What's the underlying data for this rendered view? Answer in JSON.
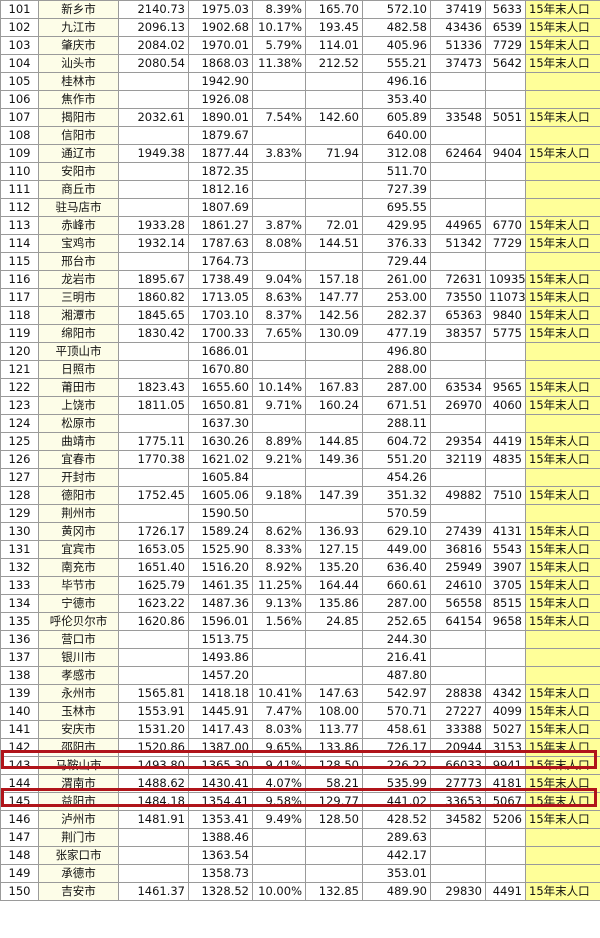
{
  "table": {
    "rows": [
      [
        "101",
        "新乡市",
        "2140.73",
        "1975.03",
        "8.39%",
        "165.70",
        "572.10",
        "37419",
        "5633",
        "15年末人口"
      ],
      [
        "102",
        "九江市",
        "2096.13",
        "1902.68",
        "10.17%",
        "193.45",
        "482.58",
        "43436",
        "6539",
        "15年末人口"
      ],
      [
        "103",
        "肇庆市",
        "2084.02",
        "1970.01",
        "5.79%",
        "114.01",
        "405.96",
        "51336",
        "7729",
        "15年末人口"
      ],
      [
        "104",
        "汕头市",
        "2080.54",
        "1868.03",
        "11.38%",
        "212.52",
        "555.21",
        "37473",
        "5642",
        "15年末人口"
      ],
      [
        "105",
        "桂林市",
        null,
        "1942.90",
        null,
        null,
        "496.16",
        null,
        null,
        null
      ],
      [
        "106",
        "焦作市",
        null,
        "1926.08",
        null,
        null,
        "353.40",
        null,
        null,
        null
      ],
      [
        "107",
        "揭阳市",
        "2032.61",
        "1890.01",
        "7.54%",
        "142.60",
        "605.89",
        "33548",
        "5051",
        "15年末人口"
      ],
      [
        "108",
        "信阳市",
        null,
        "1879.67",
        null,
        null,
        "640.00",
        null,
        null,
        null
      ],
      [
        "109",
        "通辽市",
        "1949.38",
        "1877.44",
        "3.83%",
        "71.94",
        "312.08",
        "62464",
        "9404",
        "15年末人口"
      ],
      [
        "110",
        "安阳市",
        null,
        "1872.35",
        null,
        null,
        "511.70",
        null,
        null,
        null
      ],
      [
        "111",
        "商丘市",
        null,
        "1812.16",
        null,
        null,
        "727.39",
        null,
        null,
        null
      ],
      [
        "112",
        "驻马店市",
        null,
        "1807.69",
        null,
        null,
        "695.55",
        null,
        null,
        null
      ],
      [
        "113",
        "赤峰市",
        "1933.28",
        "1861.27",
        "3.87%",
        "72.01",
        "429.95",
        "44965",
        "6770",
        "15年末人口"
      ],
      [
        "114",
        "宝鸡市",
        "1932.14",
        "1787.63",
        "8.08%",
        "144.51",
        "376.33",
        "51342",
        "7729",
        "15年末人口"
      ],
      [
        "115",
        "邢台市",
        null,
        "1764.73",
        null,
        null,
        "729.44",
        null,
        null,
        null
      ],
      [
        "116",
        "龙岩市",
        "1895.67",
        "1738.49",
        "9.04%",
        "157.18",
        "261.00",
        "72631",
        "10935",
        "15年末人口"
      ],
      [
        "117",
        "三明市",
        "1860.82",
        "1713.05",
        "8.63%",
        "147.77",
        "253.00",
        "73550",
        "11073",
        "15年末人口"
      ],
      [
        "118",
        "湘潭市",
        "1845.65",
        "1703.10",
        "8.37%",
        "142.56",
        "282.37",
        "65363",
        "9840",
        "15年末人口"
      ],
      [
        "119",
        "绵阳市",
        "1830.42",
        "1700.33",
        "7.65%",
        "130.09",
        "477.19",
        "38357",
        "5775",
        "15年末人口"
      ],
      [
        "120",
        "平顶山市",
        null,
        "1686.01",
        null,
        null,
        "496.80",
        null,
        null,
        null
      ],
      [
        "121",
        "日照市",
        null,
        "1670.80",
        null,
        null,
        "288.00",
        null,
        null,
        null
      ],
      [
        "122",
        "莆田市",
        "1823.43",
        "1655.60",
        "10.14%",
        "167.83",
        "287.00",
        "63534",
        "9565",
        "15年末人口"
      ],
      [
        "123",
        "上饶市",
        "1811.05",
        "1650.81",
        "9.71%",
        "160.24",
        "671.51",
        "26970",
        "4060",
        "15年末人口"
      ],
      [
        "124",
        "松原市",
        null,
        "1637.30",
        null,
        null,
        "288.11",
        null,
        null,
        null
      ],
      [
        "125",
        "曲靖市",
        "1775.11",
        "1630.26",
        "8.89%",
        "144.85",
        "604.72",
        "29354",
        "4419",
        "15年末人口"
      ],
      [
        "126",
        "宜春市",
        "1770.38",
        "1621.02",
        "9.21%",
        "149.36",
        "551.20",
        "32119",
        "4835",
        "15年末人口"
      ],
      [
        "127",
        "开封市",
        null,
        "1605.84",
        null,
        null,
        "454.26",
        null,
        null,
        null
      ],
      [
        "128",
        "德阳市",
        "1752.45",
        "1605.06",
        "9.18%",
        "147.39",
        "351.32",
        "49882",
        "7510",
        "15年末人口"
      ],
      [
        "129",
        "荆州市",
        null,
        "1590.50",
        null,
        null,
        "570.59",
        null,
        null,
        null
      ],
      [
        "130",
        "黄冈市",
        "1726.17",
        "1589.24",
        "8.62%",
        "136.93",
        "629.10",
        "27439",
        "4131",
        "15年末人口"
      ],
      [
        "131",
        "宜宾市",
        "1653.05",
        "1525.90",
        "8.33%",
        "127.15",
        "449.00",
        "36816",
        "5543",
        "15年末人口"
      ],
      [
        "132",
        "南充市",
        "1651.40",
        "1516.20",
        "8.92%",
        "135.20",
        "636.40",
        "25949",
        "3907",
        "15年末人口"
      ],
      [
        "133",
        "毕节市",
        "1625.79",
        "1461.35",
        "11.25%",
        "164.44",
        "660.61",
        "24610",
        "3705",
        "15年末人口"
      ],
      [
        "134",
        "宁德市",
        "1623.22",
        "1487.36",
        "9.13%",
        "135.86",
        "287.00",
        "56558",
        "8515",
        "15年末人口"
      ],
      [
        "135",
        "呼伦贝尔市",
        "1620.86",
        "1596.01",
        "1.56%",
        "24.85",
        "252.65",
        "64154",
        "9658",
        "15年末人口"
      ],
      [
        "136",
        "营口市",
        null,
        "1513.75",
        null,
        null,
        "244.30",
        null,
        null,
        null
      ],
      [
        "137",
        "银川市",
        null,
        "1493.86",
        null,
        null,
        "216.41",
        null,
        null,
        null
      ],
      [
        "138",
        "孝感市",
        null,
        "1457.20",
        null,
        null,
        "487.80",
        null,
        null,
        null
      ],
      [
        "139",
        "永州市",
        "1565.81",
        "1418.18",
        "10.41%",
        "147.63",
        "542.97",
        "28838",
        "4342",
        "15年末人口"
      ],
      [
        "140",
        "玉林市",
        "1553.91",
        "1445.91",
        "7.47%",
        "108.00",
        "570.71",
        "27227",
        "4099",
        "15年末人口"
      ],
      [
        "141",
        "安庆市",
        "1531.20",
        "1417.43",
        "8.03%",
        "113.77",
        "458.61",
        "33388",
        "5027",
        "15年末人口"
      ],
      [
        "142",
        "邵阳市",
        "1520.86",
        "1387.00",
        "9.65%",
        "133.86",
        "726.17",
        "20944",
        "3153",
        "15年末人口"
      ],
      [
        "143",
        "马鞍山市",
        "1493.80",
        "1365.30",
        "9.41%",
        "128.50",
        "226.22",
        "66033",
        "9941",
        "15年末人口"
      ],
      [
        "144",
        "渭南市",
        "1488.62",
        "1430.41",
        "4.07%",
        "58.21",
        "535.99",
        "27773",
        "4181",
        "15年末人口"
      ],
      [
        "145",
        "益阳市",
        "1484.18",
        "1354.41",
        "9.58%",
        "129.77",
        "441.02",
        "33653",
        "5067",
        "15年末人口"
      ],
      [
        "146",
        "泸州市",
        "1481.91",
        "1353.41",
        "9.49%",
        "128.50",
        "428.52",
        "34582",
        "5206",
        "15年末人口"
      ],
      [
        "147",
        "荆门市",
        null,
        "1388.46",
        null,
        null,
        "289.63",
        null,
        null,
        null
      ],
      [
        "148",
        "张家口市",
        null,
        "1363.54",
        null,
        null,
        "442.17",
        null,
        null,
        null
      ],
      [
        "149",
        "承德市",
        null,
        "1358.73",
        null,
        null,
        "353.01",
        null,
        null,
        null
      ],
      [
        "150",
        "吉安市",
        "1461.37",
        "1328.52",
        "10.00%",
        "132.85",
        "489.90",
        "29830",
        "4491",
        "15年末人口"
      ]
    ]
  }
}
